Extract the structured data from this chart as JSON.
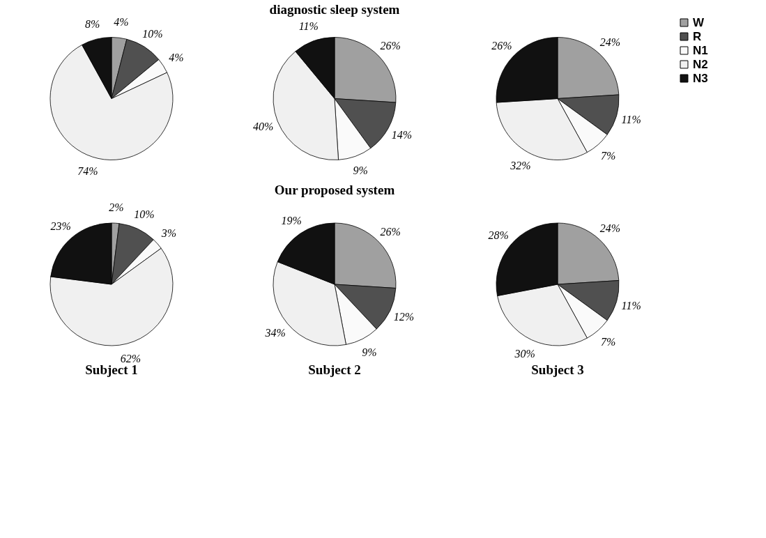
{
  "chart_data": [
    {
      "type": "pie",
      "categories": [
        null,
        null,
        null,
        null,
        null
      ],
      "values": [
        4,
        10,
        4,
        74,
        8
      ],
      "value_labels": [
        "4%",
        "10%",
        "4%",
        "74%",
        "8%"
      ],
      "colors": [
        "#a0a0a0",
        "#505050",
        "#fafafa",
        "#f0f0f0",
        "#111111"
      ]
    },
    {
      "type": "pie",
      "title": "diagnostic sleep system",
      "categories": [
        null,
        null,
        null,
        null,
        null
      ],
      "values": [
        26,
        14,
        9,
        40,
        11
      ],
      "value_labels": [
        "26%",
        "14%",
        "9%",
        "40%",
        "11%"
      ],
      "colors": [
        "#a0a0a0",
        "#505050",
        "#fafafa",
        "#f0f0f0",
        "#111111"
      ]
    },
    {
      "type": "pie",
      "categories": [
        "W",
        "R",
        "N1",
        "N2",
        "N3"
      ],
      "values": [
        24,
        11,
        7,
        32,
        26
      ],
      "value_labels": [
        "24%",
        "11%",
        "7%",
        "32%",
        "26%"
      ],
      "colors": [
        "#a0a0a0",
        "#505050",
        "#fafafa",
        "#f0f0f0",
        "#111111"
      ],
      "legend": "right"
    },
    {
      "type": "pie",
      "categories": [
        null,
        null,
        null,
        null,
        null
      ],
      "values": [
        2,
        10,
        3,
        62,
        23
      ],
      "value_labels": [
        "2%",
        "10%",
        "3%",
        "62%",
        "23%"
      ],
      "colors": [
        "#a0a0a0",
        "#505050",
        "#fafafa",
        "#f0f0f0",
        "#111111"
      ],
      "annotations": [
        "Subject 1"
      ]
    },
    {
      "type": "pie",
      "title": "Our  proposed  system",
      "categories": [
        null,
        null,
        null,
        null,
        null
      ],
      "values": [
        26,
        12,
        9,
        34,
        19
      ],
      "value_labels": [
        "26%",
        "12%",
        "9%",
        "34%",
        "19%"
      ],
      "colors": [
        "#a0a0a0",
        "#505050",
        "#fafafa",
        "#f0f0f0",
        "#111111"
      ],
      "annotations": [
        "Subject 2"
      ]
    },
    {
      "type": "pie",
      "categories": [
        null,
        null,
        null,
        null,
        null
      ],
      "values": [
        24,
        11,
        7,
        30,
        28
      ],
      "value_labels": [
        "24%",
        "11%",
        "7%",
        "30%",
        "28%"
      ],
      "colors": [
        "#a0a0a0",
        "#505050",
        "#fafafa",
        "#f0f0f0",
        "#111111"
      ],
      "annotations": [
        "Subject 3"
      ]
    }
  ]
}
